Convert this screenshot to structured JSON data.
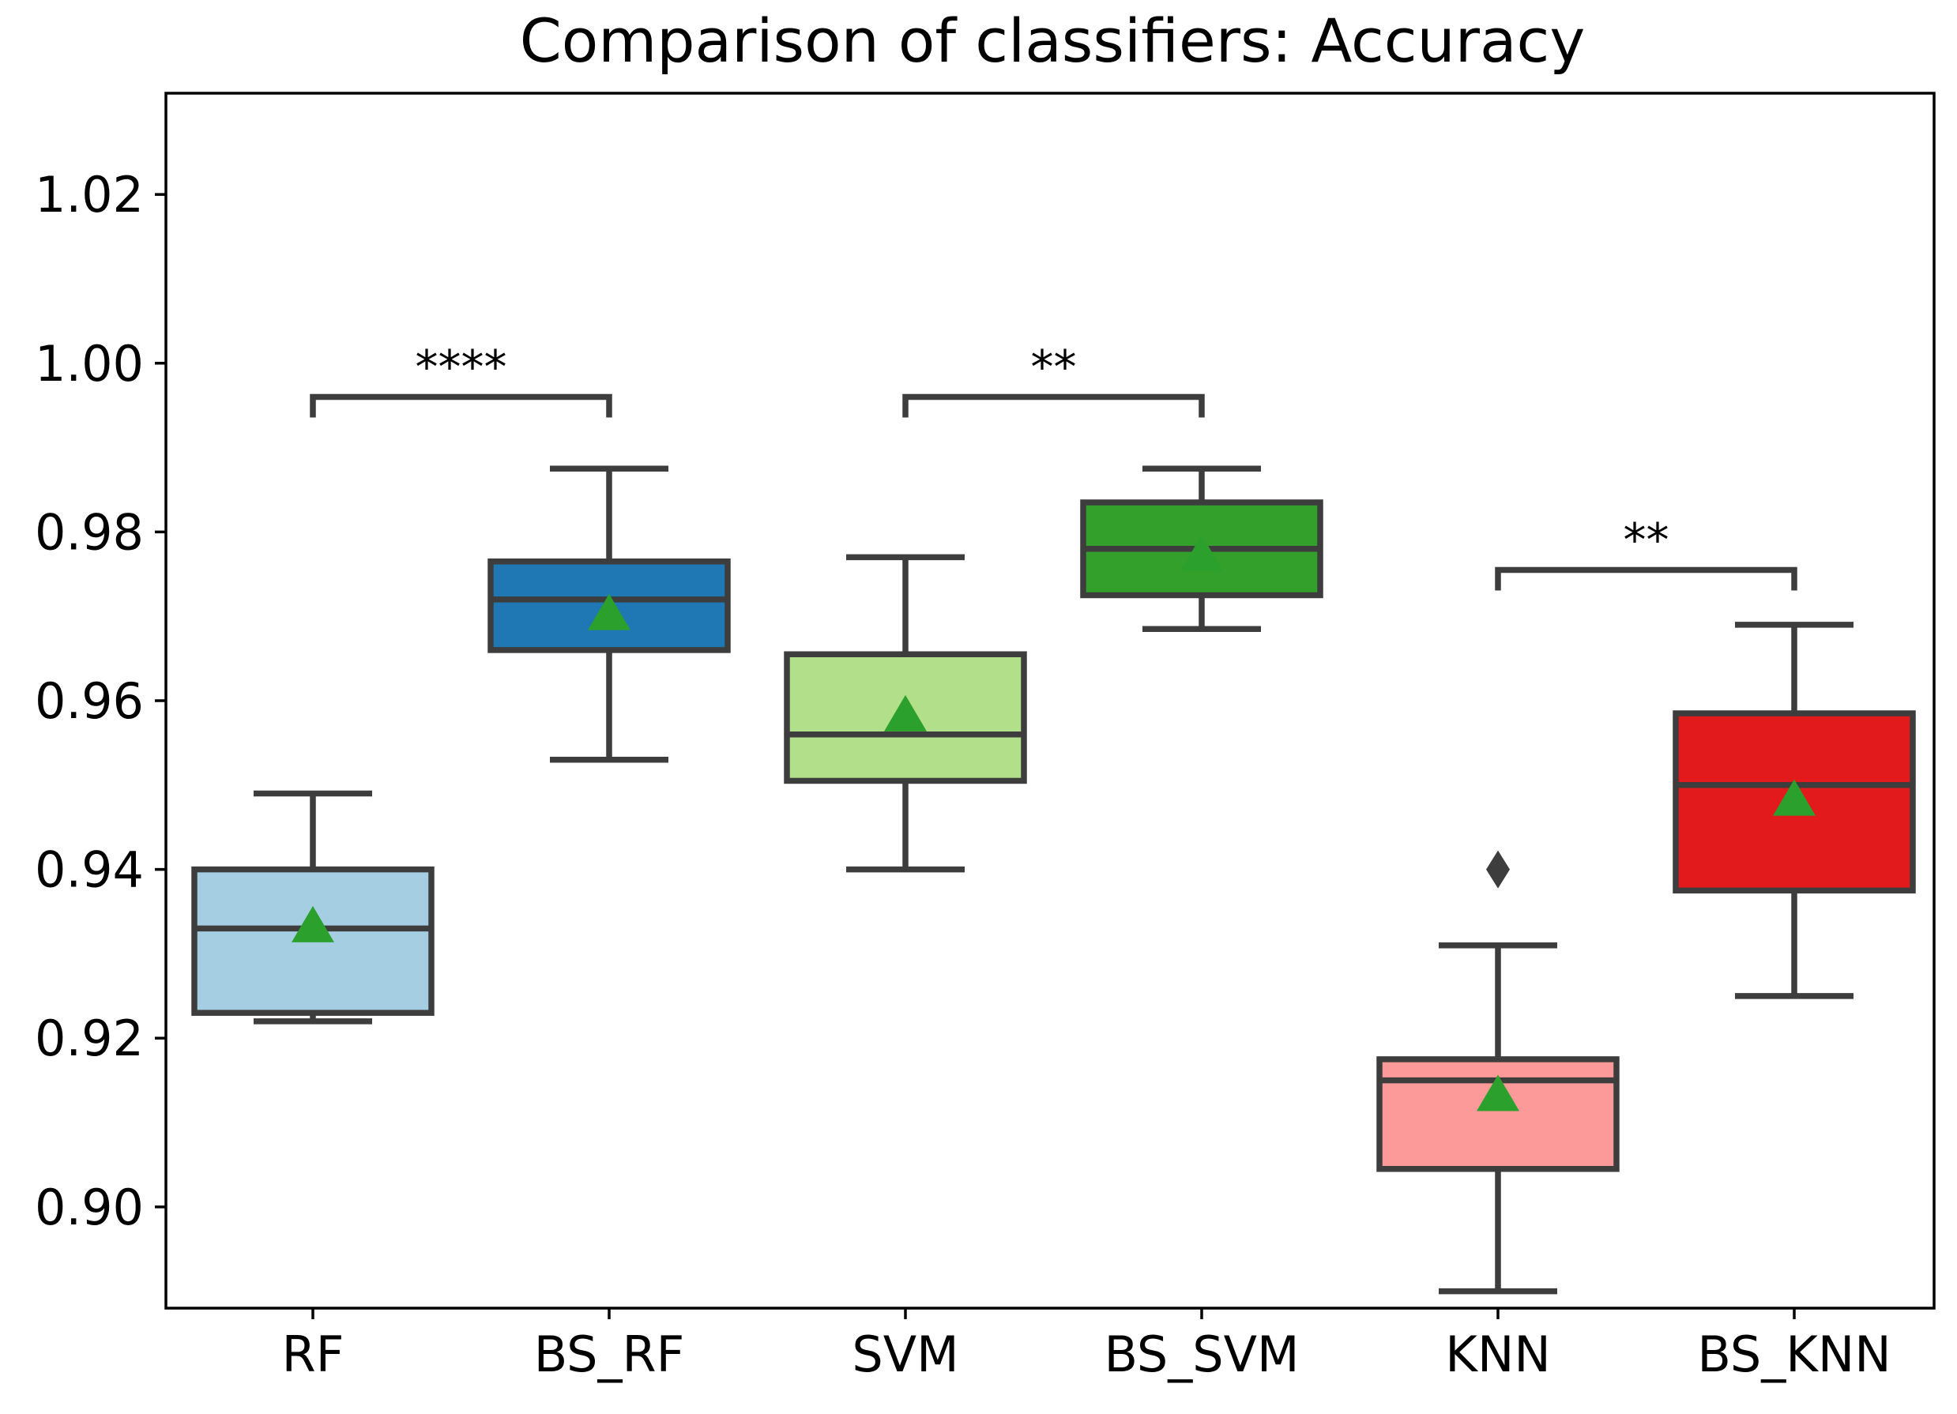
{
  "chart_data": {
    "type": "box",
    "title": "Comparison of classifiers: Accuracy",
    "xlabel": "",
    "ylabel": "",
    "ylim": [
      0.888,
      1.032
    ],
    "yticks": [
      0.9,
      0.92,
      0.94,
      0.96,
      0.98,
      1.0,
      1.02
    ],
    "ytick_labels": [
      "0.90",
      "0.92",
      "0.94",
      "0.96",
      "0.98",
      "1.00",
      "1.02"
    ],
    "categories": [
      "RF",
      "BS_RF",
      "SVM",
      "BS_SVM",
      "KNN",
      "BS_KNN"
    ],
    "mean_marker_color": "#2ca02c",
    "series": [
      {
        "name": "RF",
        "color": "#a6cee3",
        "whisker_low": 0.922,
        "q1": 0.923,
        "median": 0.933,
        "q3": 0.94,
        "whisker_high": 0.949,
        "mean": 0.933,
        "outliers": []
      },
      {
        "name": "BS_RF",
        "color": "#1f78b4",
        "whisker_low": 0.953,
        "q1": 0.966,
        "median": 0.972,
        "q3": 0.9765,
        "whisker_high": 0.9875,
        "mean": 0.97,
        "outliers": []
      },
      {
        "name": "SVM",
        "color": "#b2df8a",
        "whisker_low": 0.94,
        "q1": 0.9505,
        "median": 0.956,
        "q3": 0.9655,
        "whisker_high": 0.977,
        "mean": 0.958,
        "outliers": []
      },
      {
        "name": "BS_SVM",
        "color": "#33a02c",
        "whisker_low": 0.9685,
        "q1": 0.9725,
        "median": 0.978,
        "q3": 0.9835,
        "whisker_high": 0.9875,
        "mean": 0.977,
        "outliers": []
      },
      {
        "name": "KNN",
        "color": "#fb9a99",
        "whisker_low": 0.89,
        "q1": 0.9045,
        "median": 0.915,
        "q3": 0.9175,
        "whisker_high": 0.931,
        "mean": 0.913,
        "outliers": [
          0.94
        ]
      },
      {
        "name": "BS_KNN",
        "color": "#e31a1c",
        "whisker_low": 0.925,
        "q1": 0.9375,
        "median": 0.95,
        "q3": 0.9585,
        "whisker_high": 0.969,
        "mean": 0.948,
        "outliers": []
      }
    ],
    "significance": [
      {
        "from": 0,
        "to": 1,
        "label": "****",
        "y": 0.996
      },
      {
        "from": 2,
        "to": 3,
        "label": "**",
        "y": 0.996
      },
      {
        "from": 4,
        "to": 5,
        "label": "**",
        "y": 0.9755
      }
    ]
  }
}
